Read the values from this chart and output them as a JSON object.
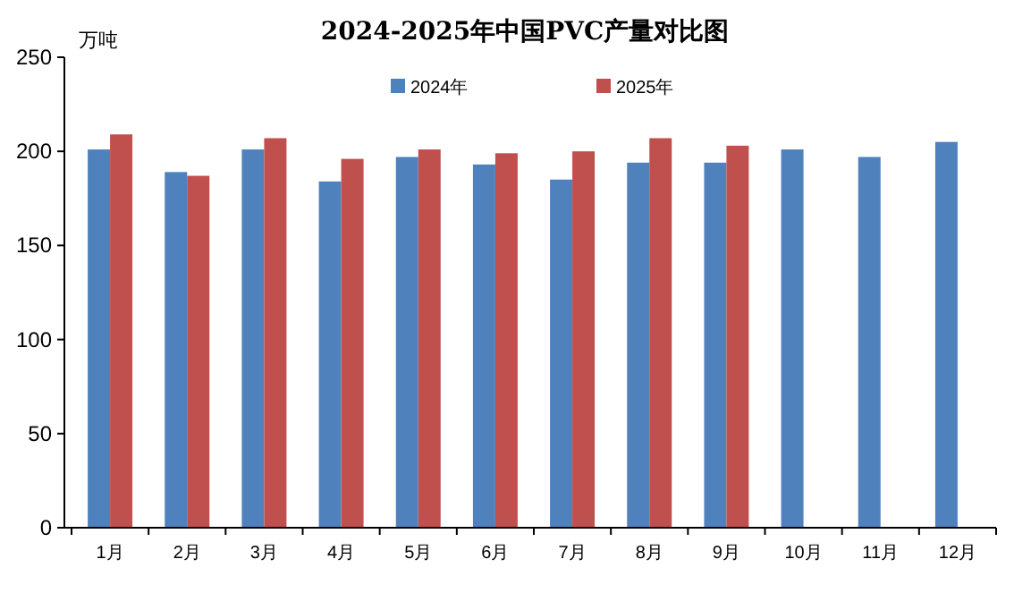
{
  "chart_data": {
    "type": "bar",
    "title": "2024-2025年中国PVC产量对比图",
    "ylabel": "万吨",
    "categories": [
      "1月",
      "2月",
      "3月",
      "4月",
      "5月",
      "6月",
      "7月",
      "8月",
      "9月",
      "10月",
      "11月",
      "12月"
    ],
    "series": [
      {
        "name": "2024年",
        "color": "#4f81bd",
        "values": [
          201,
          189,
          201,
          184,
          197,
          193,
          185,
          194,
          194,
          201,
          197,
          205
        ]
      },
      {
        "name": "2025年",
        "color": "#c0504d",
        "values": [
          209,
          187,
          207,
          196,
          201,
          199,
          200,
          207,
          203,
          null,
          null,
          null
        ]
      }
    ],
    "ylim": [
      0,
      250
    ],
    "yticks": [
      0,
      50,
      100,
      150,
      200,
      250
    ],
    "grid": false,
    "legend": "top"
  }
}
